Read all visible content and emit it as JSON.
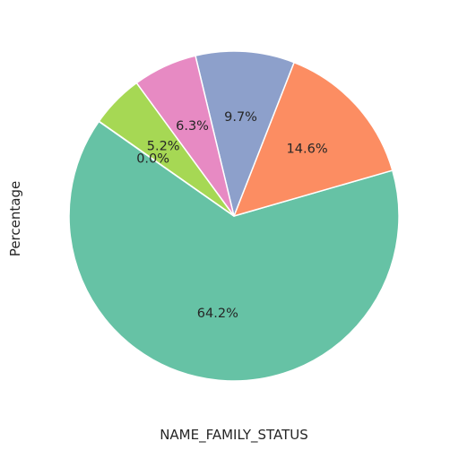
{
  "chart_data": {
    "type": "pie",
    "title": "",
    "xlabel": "NAME_FAMILY_STATUS",
    "ylabel": "Percentage",
    "start_angle_deg": 145,
    "direction": "counterclockwise",
    "legend": "none",
    "slices": [
      {
        "label": "64.2%",
        "value": 64.2,
        "color": "#66c2a5"
      },
      {
        "label": "14.6%",
        "value": 14.6,
        "color": "#fc8d62"
      },
      {
        "label": "9.7%",
        "value": 9.7,
        "color": "#8da0cb"
      },
      {
        "label": "6.3%",
        "value": 6.3,
        "color": "#e78ac3"
      },
      {
        "label": "5.2%",
        "value": 5.2,
        "color": "#a6d854"
      },
      {
        "label": "0.0%",
        "value": 0.02,
        "color": "#ffd92f"
      }
    ]
  }
}
